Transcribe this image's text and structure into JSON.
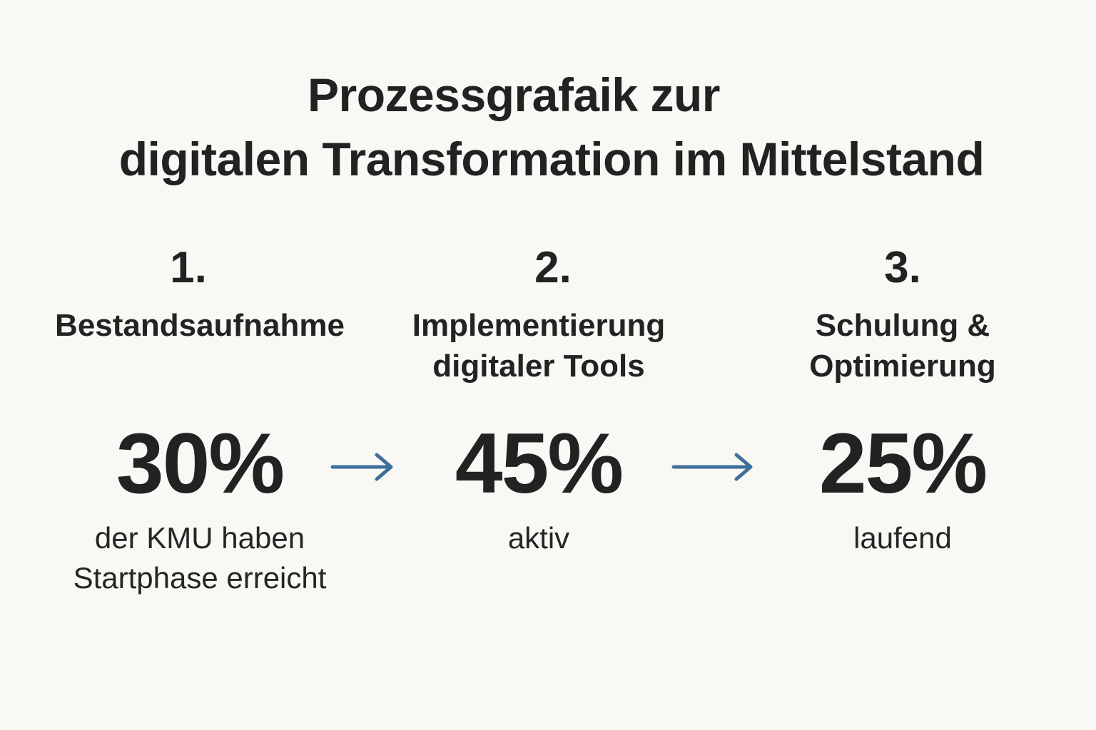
{
  "title": {
    "line1": "Prozessgrafaik zur",
    "line2": "digitalen Transformation im Mittelstand"
  },
  "steps": [
    {
      "number": "1.",
      "title_lines": [
        "Bestandsaufnahme"
      ],
      "percent": "30%",
      "desc_lines": [
        "der KMU haben",
        "Startphase erreicht"
      ]
    },
    {
      "number": "2.",
      "title_lines": [
        "Implementierung",
        "digitaler Tools"
      ],
      "percent": "45%",
      "desc_lines": [
        "aktiv"
      ]
    },
    {
      "number": "3.",
      "title_lines": [
        "Schulung &",
        "Optimierung"
      ],
      "percent": "25%",
      "desc_lines": [
        "laufend"
      ]
    }
  ],
  "arrows": {
    "icon": "arrow-right-icon",
    "color": "#3f6f99"
  },
  "colors": {
    "background": "#f9f8f4",
    "text": "#222222",
    "arrow": "#3f6f99"
  }
}
